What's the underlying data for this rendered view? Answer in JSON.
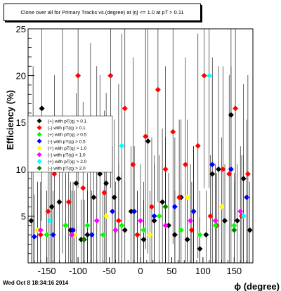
{
  "chart_data": {
    "type": "scatter",
    "title": "Clone over all for Primary Tracks vs.(degree) at |η| <= 1.0 at pT > 0.11",
    "xlabel": "ϕ (degree)",
    "ylabel": "Efficiency (%)",
    "xlim": [
      -180,
      180
    ],
    "ylim": [
      0,
      25
    ],
    "x_ticks": [
      -150,
      -100,
      -50,
      0,
      50,
      100,
      150
    ],
    "y_ticks": [
      5,
      10,
      15,
      20,
      25
    ],
    "grid": false,
    "legend_position": "left-middle",
    "series": [
      {
        "name": "(+) with pT(q) > 0.1",
        "color": "#000000",
        "x": [
          -175,
          -165,
          -158,
          -150,
          -142,
          -130,
          -120,
          -112,
          -103,
          -95,
          -85,
          -75,
          -65,
          -55,
          -42,
          -35,
          -25,
          -15,
          -5,
          5,
          12,
          22,
          35,
          45,
          55,
          65,
          75,
          85,
          95,
          105,
          115,
          125,
          135,
          145,
          155,
          165,
          175
        ],
        "y": [
          4.5,
          3.5,
          16.5,
          3,
          6,
          6.5,
          4,
          3.5,
          8.5,
          2.5,
          3,
          7,
          9.5,
          8.5,
          7,
          9,
          3.5,
          5.5,
          3,
          2.5,
          13,
          4.5,
          6.5,
          4,
          3,
          7,
          2.5,
          5.5,
          1.5,
          3,
          9.5,
          10,
          4.5,
          15.8,
          4.5,
          9,
          3.5
        ]
      },
      {
        "name": "(-) with pT(q) > 0.1",
        "color": "#ff0000",
        "x": [
          -172,
          -160,
          -148,
          -138,
          -125,
          -115,
          -100,
          -92,
          -80,
          -70,
          -58,
          -48,
          -35,
          -25,
          -12,
          -5,
          8,
          18,
          28,
          40,
          52,
          62,
          72,
          82,
          92,
          102,
          112,
          122,
          132,
          142,
          152,
          162,
          172
        ],
        "y": [
          10,
          3,
          5.5,
          9.5,
          13,
          6.5,
          20,
          8,
          11.5,
          10,
          7.5,
          20,
          4.5,
          16.5,
          10.5,
          3,
          13.5,
          6,
          18.5,
          10,
          14,
          7,
          10.5,
          3.5,
          12.5,
          20,
          5,
          4,
          10,
          9.5,
          16.5,
          5,
          9.5
        ]
      },
      {
        "name": "(+) with pT(q) > 0.5",
        "color": "#00ff00",
        "x": [
          -150,
          -120,
          -85,
          -60,
          -30,
          5,
          30,
          65,
          95,
          120,
          150
        ],
        "y": [
          3,
          4,
          4,
          3,
          4,
          3.5,
          5,
          3.5,
          3,
          4,
          4
        ]
      },
      {
        "name": "(-) with pT(q) > 0.5",
        "color": "#0000ff",
        "x": [
          -170,
          -140,
          -108,
          -78,
          -45,
          -10,
          22,
          55,
          85,
          115,
          145,
          170
        ],
        "y": [
          2.8,
          3,
          3.5,
          3,
          5.5,
          5.5,
          5,
          6,
          5.5,
          10.5,
          10,
          7
        ]
      },
      {
        "name": "(+) with pT(q) > 1.0",
        "color": "#ffff00",
        "x": [
          -165,
          -105,
          -55,
          15,
          75,
          130
        ],
        "y": [
          3.5,
          3,
          5,
          3,
          7,
          6
        ]
      },
      {
        "name": "(-) with pT(q) > 1.0",
        "color": "#ff00ff",
        "x": [
          -160,
          -110,
          -70,
          -40,
          0,
          40,
          80,
          120,
          160
        ],
        "y": [
          3.5,
          3,
          4.5,
          3.5,
          4.5,
          4,
          4.5,
          4.5,
          5.5
        ]
      },
      {
        "name": "(+) with pT(q) > 2.0",
        "color": "#00ffff",
        "x": [
          -145,
          -30,
          110,
          165
        ],
        "y": [
          4.5,
          12.5,
          20,
          5
        ]
      },
      {
        "name": "(-) with pT(q) > 2.0",
        "color": "#008000",
        "x": [
          -90,
          40,
          150
        ],
        "y": [
          2.5,
          6,
          3.5
        ]
      }
    ]
  },
  "footer": {
    "date": "Wed Oct  8 18:34:16 2014"
  }
}
